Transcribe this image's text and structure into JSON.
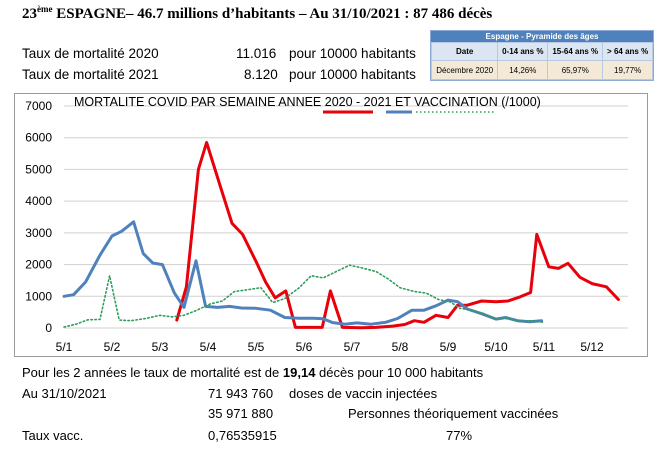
{
  "header": {
    "rank": "23",
    "rank_sup": "ème",
    "title": " ESPAGNE– 46.7 millions d’habitants – Au 31/10/2021 : 87 486 décès"
  },
  "mortality": [
    {
      "label": "Taux de mortalité 2020",
      "value": "11.016",
      "unit": "pour 10000 habitants"
    },
    {
      "label": "Taux de mortalité 2021",
      "value": "8.120",
      "unit": "pour 10000 habitants"
    }
  ],
  "pyramid": {
    "title": "Espagne - Pyramide des âges",
    "columns": [
      "Date",
      "0-14 ans %",
      "15-64 ans %",
      "> 64 ans %"
    ],
    "row": [
      "Décembre 2020",
      "14,26%",
      "65,97%",
      "19,77%"
    ]
  },
  "chart_data": {
    "type": "line",
    "title": "MORTALITE COVID PAR SEMAINE ANNEE 2020 - 2021 ET VACCINATION (/1000)",
    "ylim": [
      0,
      7000
    ],
    "yticks": [
      0,
      1000,
      2000,
      3000,
      4000,
      5000,
      6000,
      7000
    ],
    "xlim": [
      1,
      12.75
    ],
    "xticks": [
      1,
      2,
      3,
      4,
      5,
      6,
      7,
      8,
      9,
      10,
      11,
      12
    ],
    "xtick_labels": [
      "5/1",
      "5/2",
      "5/3",
      "5/4",
      "5/5",
      "5/6",
      "5/7",
      "5/8",
      "5/9",
      "5/10",
      "5/11",
      "5/12"
    ],
    "grid": true,
    "legend_position": "top-right",
    "series": [
      {
        "color": "#e8000b",
        "style": "solid",
        "points": [
          [
            3.35,
            250
          ],
          [
            3.55,
            1300
          ],
          [
            3.8,
            5000
          ],
          [
            3.97,
            5850
          ],
          [
            4.25,
            4500
          ],
          [
            4.5,
            3300
          ],
          [
            4.72,
            2950
          ],
          [
            5.0,
            2100
          ],
          [
            5.2,
            1450
          ],
          [
            5.4,
            950
          ],
          [
            5.62,
            1170
          ],
          [
            5.82,
            20
          ],
          [
            6.2,
            20
          ],
          [
            6.38,
            20
          ],
          [
            6.55,
            1170
          ],
          [
            6.8,
            20
          ],
          [
            7.2,
            10
          ],
          [
            7.5,
            20
          ],
          [
            7.85,
            60
          ],
          [
            8.1,
            110
          ],
          [
            8.3,
            230
          ],
          [
            8.5,
            180
          ],
          [
            8.75,
            400
          ],
          [
            9.0,
            330
          ],
          [
            9.2,
            720
          ],
          [
            9.4,
            720
          ],
          [
            9.7,
            850
          ],
          [
            10.0,
            830
          ],
          [
            10.25,
            850
          ],
          [
            10.5,
            980
          ],
          [
            10.72,
            1120
          ],
          [
            10.85,
            2950
          ],
          [
            11.1,
            1930
          ],
          [
            11.3,
            1880
          ],
          [
            11.5,
            2040
          ],
          [
            11.75,
            1600
          ],
          [
            12.0,
            1400
          ],
          [
            12.3,
            1300
          ],
          [
            12.55,
            900
          ]
        ]
      },
      {
        "color": "#4f81bd",
        "style": "solid",
        "points": [
          [
            1.0,
            1000
          ],
          [
            1.2,
            1050
          ],
          [
            1.45,
            1450
          ],
          [
            1.75,
            2300
          ],
          [
            2.0,
            2900
          ],
          [
            2.2,
            3050
          ],
          [
            2.45,
            3350
          ],
          [
            2.65,
            2350
          ],
          [
            2.85,
            2050
          ],
          [
            3.05,
            2000
          ],
          [
            3.3,
            1100
          ],
          [
            3.5,
            650
          ],
          [
            3.75,
            2120
          ],
          [
            3.95,
            680
          ],
          [
            4.2,
            650
          ],
          [
            4.45,
            680
          ],
          [
            4.7,
            630
          ],
          [
            5.0,
            620
          ],
          [
            5.3,
            560
          ],
          [
            5.6,
            330
          ],
          [
            5.9,
            310
          ],
          [
            6.2,
            310
          ],
          [
            6.4,
            290
          ],
          [
            6.6,
            170
          ],
          [
            6.85,
            120
          ],
          [
            7.1,
            160
          ],
          [
            7.4,
            120
          ],
          [
            7.7,
            180
          ],
          [
            7.95,
            300
          ],
          [
            8.25,
            560
          ],
          [
            8.5,
            560
          ],
          [
            8.75,
            700
          ],
          [
            9.0,
            880
          ],
          [
            9.2,
            830
          ],
          [
            9.4,
            600
          ],
          [
            9.7,
            450
          ],
          [
            10.0,
            280
          ],
          [
            10.2,
            330
          ],
          [
            10.45,
            230
          ],
          [
            10.7,
            200
          ],
          [
            10.95,
            230
          ]
        ]
      },
      {
        "color": "#2e9e5b",
        "style": "dotted",
        "points": [
          [
            1.0,
            30
          ],
          [
            1.25,
            120
          ],
          [
            1.5,
            260
          ],
          [
            1.75,
            270
          ],
          [
            1.95,
            1650
          ],
          [
            2.15,
            250
          ],
          [
            2.4,
            230
          ],
          [
            2.7,
            300
          ],
          [
            3.0,
            400
          ],
          [
            3.25,
            350
          ],
          [
            3.5,
            400
          ],
          [
            3.75,
            550
          ],
          [
            4.05,
            760
          ],
          [
            4.3,
            850
          ],
          [
            4.55,
            1150
          ],
          [
            4.8,
            1200
          ],
          [
            5.1,
            1270
          ],
          [
            5.35,
            800
          ],
          [
            5.6,
            930
          ],
          [
            5.9,
            1270
          ],
          [
            6.15,
            1650
          ],
          [
            6.4,
            1580
          ],
          [
            6.7,
            1800
          ],
          [
            6.95,
            1980
          ],
          [
            7.25,
            1880
          ],
          [
            7.5,
            1780
          ],
          [
            7.75,
            1550
          ],
          [
            8.0,
            1270
          ],
          [
            8.3,
            1150
          ],
          [
            8.55,
            1100
          ],
          [
            8.8,
            900
          ],
          [
            9.05,
            820
          ],
          [
            9.25,
            620
          ],
          [
            9.5,
            560
          ],
          [
            9.75,
            450
          ],
          [
            10.0,
            280
          ],
          [
            10.25,
            300
          ],
          [
            10.5,
            200
          ],
          [
            10.75,
            230
          ],
          [
            11.0,
            180
          ]
        ]
      }
    ]
  },
  "footer": {
    "line1_pre": "Pour les 2 années le taux de mortalité est de ",
    "line1_bold": "19,14",
    "line1_post": " décès pour 10 000 habitants",
    "date_label": "Au 31/10/2021",
    "doses": "71 943 760",
    "doses_label": "doses de vaccin injectées",
    "persons": "35 971 880",
    "persons_label": "Personnes théoriquement vaccinées",
    "rate_label": "Taux vacc.",
    "rate_value": "0,76535915",
    "rate_pct": "77%"
  }
}
